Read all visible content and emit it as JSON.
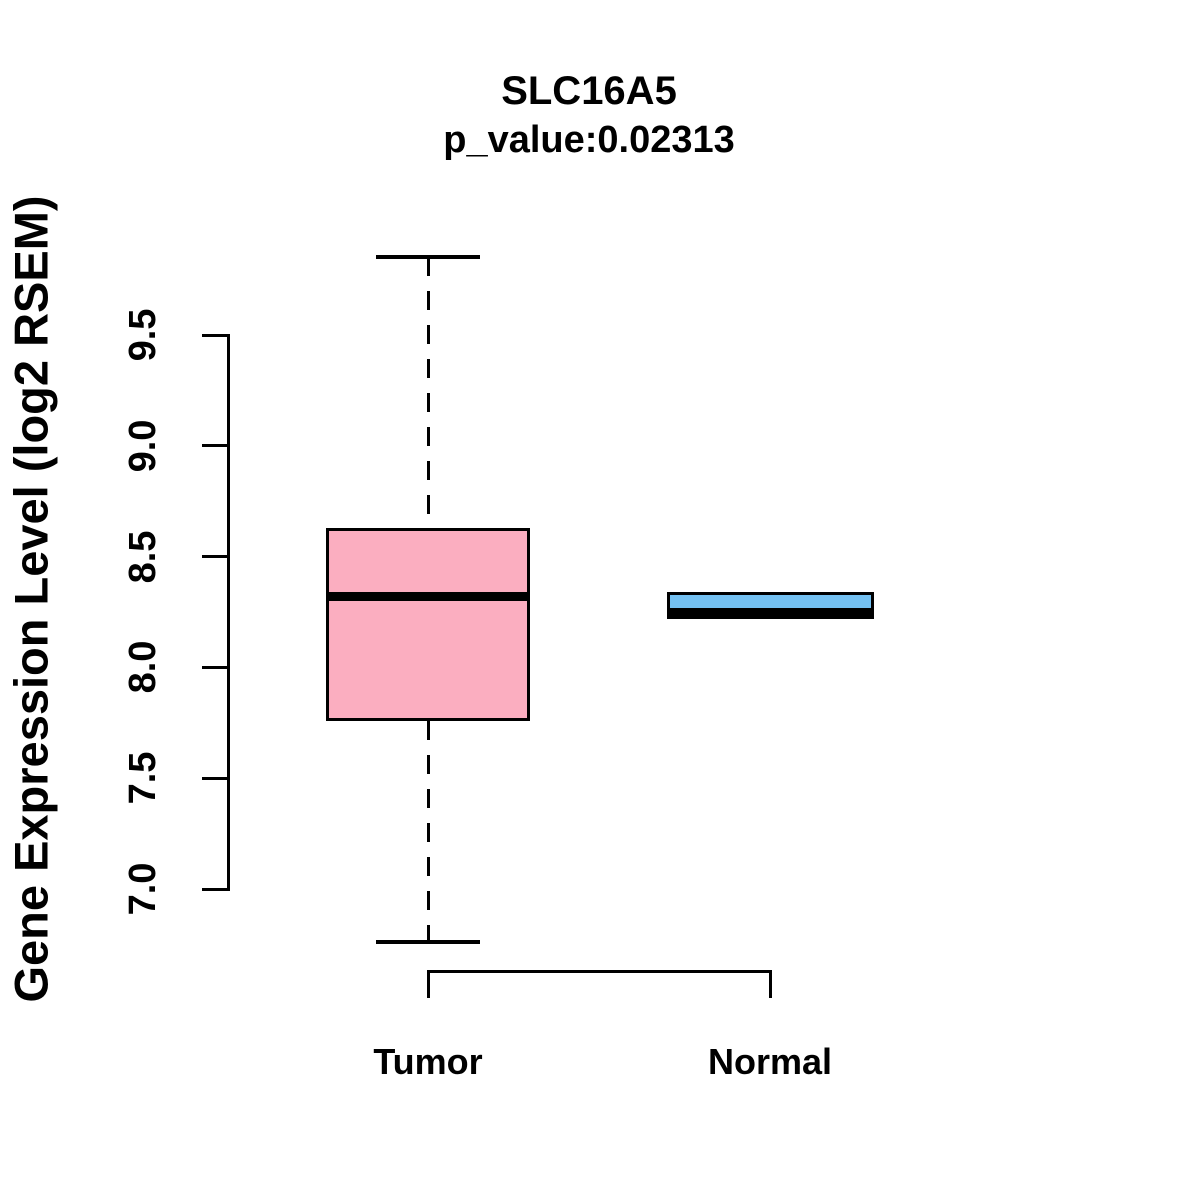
{
  "figure": {
    "title": "SLC16A5",
    "subtitle": "p_value:0.02313",
    "ylabel": "Gene Expression Level (log2 RSEM)"
  },
  "chart_data": {
    "type": "boxplot",
    "title": "SLC16A5",
    "subtitle": "p_value:0.02313",
    "gene": "SLC16A5",
    "p_value": 0.02313,
    "xlabel": "",
    "ylabel": "Gene Expression Level (log2 RSEM)",
    "categories": [
      "Tumor",
      "Normal"
    ],
    "y_ticks": [
      7.0,
      7.5,
      8.0,
      8.5,
      9.0,
      9.5
    ],
    "y_tick_labels": [
      "7.0",
      "7.5",
      "8.0",
      "8.5",
      "9.0",
      "9.5"
    ],
    "ylim": [
      6.6,
      9.95
    ],
    "grid": false,
    "legend": "none",
    "colors": {
      "tumor_fill": "#FBAEC0",
      "normal_fill": "#74C1F2",
      "line": "#000000"
    },
    "series": [
      {
        "name": "Tumor",
        "color": "#FBAEC0",
        "whisker_low": 6.76,
        "q1": 7.76,
        "median": 8.32,
        "q3": 8.63,
        "whisker_high": 9.85,
        "whisker_line": "dashed",
        "outliers": []
      },
      {
        "name": "Normal",
        "color": "#74C1F2",
        "whisker_low": 8.22,
        "q1": 8.22,
        "median": 8.25,
        "q3": 8.34,
        "whisker_high": 8.34,
        "whisker_line": "dashed",
        "outliers": []
      }
    ]
  }
}
